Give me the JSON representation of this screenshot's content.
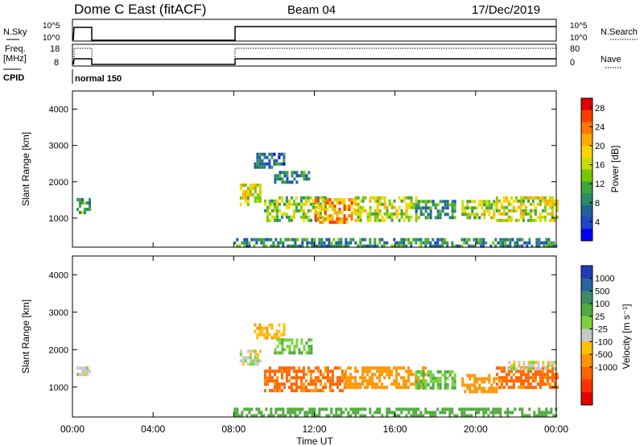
{
  "header": {
    "station": "Dome C East (fitACF)",
    "beam": "Beam 04",
    "date": "17/Dec/2019"
  },
  "strip_labels": {
    "nsky": "N.Sky",
    "freq_line1": "Freq.",
    "freq_line2": "[MHz]",
    "cpid": "CPID",
    "nsearch": "N.Search",
    "nave": "Nave",
    "nsky_ticks": [
      "10^5",
      "10^0"
    ],
    "nsearch_ticks": [
      "10^5",
      "10^0"
    ],
    "freq_ticks": [
      "18",
      "8"
    ],
    "nave_ticks": [
      "80",
      "0"
    ],
    "cpid_value": "normal 150"
  },
  "colorbars": {
    "power": {
      "label": "Power [dB]",
      "ticks": [
        "28",
        "24",
        "20",
        "16",
        "12",
        "8",
        "4"
      ],
      "colors": [
        "#e00000",
        "#ff3c00",
        "#ff7800",
        "#ffaa00",
        "#ffd400",
        "#c8dc00",
        "#78c800",
        "#3ca53c",
        "#288c64",
        "#1e6496",
        "#1e46c8",
        "#0000ff"
      ]
    },
    "velocity": {
      "label": "Velocity [m s⁻¹]",
      "ticks": [
        "1000",
        "500",
        "100",
        "25",
        "-25",
        "-100",
        "-500",
        "-1000"
      ],
      "colors": [
        "#1e3cb4",
        "#2864a0",
        "#3c8c64",
        "#50aa3c",
        "#78d23c",
        "#c8c8c8",
        "#ffbe00",
        "#ff9600",
        "#ff6400",
        "#ff3200",
        "#e60000"
      ]
    }
  },
  "chart_data": [
    {
      "type": "heatmap",
      "title": "Power",
      "xlabel": "Time UT",
      "ylabel": "Slant Range [km]",
      "xticks": [
        "00:00",
        "04:00",
        "08:00",
        "12:00",
        "16:00",
        "20:00",
        "00:00"
      ],
      "yticks": [
        "1000",
        "2000",
        "3000",
        "4000"
      ],
      "xlim_hours": [
        0,
        24
      ],
      "ylim_km": [
        200,
        4500
      ],
      "cmap_range_db": [
        0,
        30
      ],
      "regions": [
        {
          "t0": 0.2,
          "t1": 0.8,
          "r0": 1150,
          "r1": 1550,
          "v": 10
        },
        {
          "t0": 8.3,
          "t1": 9.3,
          "r0": 1400,
          "r1": 1950,
          "v": 18
        },
        {
          "t0": 9.0,
          "t1": 10.5,
          "r0": 2400,
          "r1": 2800,
          "v": 6
        },
        {
          "t0": 10.0,
          "t1": 11.8,
          "r0": 1950,
          "r1": 2300,
          "v": 7
        },
        {
          "t0": 9.5,
          "t1": 12.5,
          "r0": 900,
          "r1": 1600,
          "v": 14
        },
        {
          "t0": 12.0,
          "t1": 14.0,
          "r0": 900,
          "r1": 1550,
          "v": 22
        },
        {
          "t0": 14.0,
          "t1": 17.0,
          "r0": 950,
          "r1": 1600,
          "v": 16
        },
        {
          "t0": 17.0,
          "t1": 19.0,
          "r0": 1000,
          "r1": 1500,
          "v": 9
        },
        {
          "t0": 19.3,
          "t1": 21.0,
          "r0": 1000,
          "r1": 1500,
          "v": 15
        },
        {
          "t0": 21.0,
          "t1": 24.0,
          "r0": 900,
          "r1": 1600,
          "v": 17
        },
        {
          "t0": 8.0,
          "t1": 24.0,
          "r0": 200,
          "r1": 450,
          "v": 8
        }
      ]
    },
    {
      "type": "heatmap",
      "title": "Velocity",
      "xlabel": "Time UT",
      "ylabel": "Slant Range [km]",
      "xticks": [
        "00:00",
        "04:00",
        "08:00",
        "12:00",
        "16:00",
        "20:00",
        "00:00"
      ],
      "yticks": [
        "1000",
        "2000",
        "3000",
        "4000"
      ],
      "xlim_hours": [
        0,
        24
      ],
      "ylim_km": [
        200,
        4500
      ],
      "regions": [
        {
          "t0": 0.2,
          "t1": 0.8,
          "r0": 1300,
          "r1": 1550,
          "v": 0
        },
        {
          "t0": 8.3,
          "t1": 9.3,
          "r0": 1650,
          "r1": 2000,
          "v": 0
        },
        {
          "t0": 9.0,
          "t1": 10.5,
          "r0": 2350,
          "r1": 2700,
          "v": -60
        },
        {
          "t0": 10.0,
          "t1": 11.8,
          "r0": 1900,
          "r1": 2300,
          "v": 60
        },
        {
          "t0": 9.5,
          "t1": 13.5,
          "r0": 900,
          "r1": 1550,
          "v": -300
        },
        {
          "t0": 13.5,
          "t1": 17.5,
          "r0": 950,
          "r1": 1550,
          "v": -150
        },
        {
          "t0": 17.0,
          "t1": 19.0,
          "r0": 1000,
          "r1": 1450,
          "v": 60
        },
        {
          "t0": 19.3,
          "t1": 21.0,
          "r0": 900,
          "r1": 1350,
          "v": -150
        },
        {
          "t0": 21.0,
          "t1": 24.0,
          "r0": 950,
          "r1": 1550,
          "v": -300
        },
        {
          "t0": 21.5,
          "t1": 24.0,
          "r0": 1450,
          "r1": 1700,
          "v": 0
        },
        {
          "t0": 8.0,
          "t1": 24.0,
          "r0": 200,
          "r1": 450,
          "v": 120
        }
      ]
    }
  ]
}
